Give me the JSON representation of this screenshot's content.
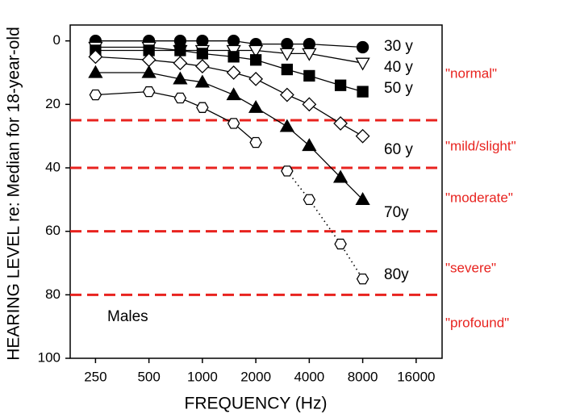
{
  "chart_data": {
    "type": "line",
    "x_label": "FREQUENCY (Hz)",
    "y_label": "HEARING LEVEL re: Median for 18-year-old",
    "annotation": "Males",
    "log_x": true,
    "y_inverted": true,
    "xlim": [
      180,
      22400
    ],
    "ylim": [
      -5,
      100
    ],
    "xticks": [
      250,
      500,
      1000,
      2000,
      4000,
      8000,
      16000
    ],
    "yticks": [
      0,
      20,
      40,
      60,
      80,
      100
    ],
    "x": [
      250,
      500,
      750,
      1000,
      1500,
      2000,
      3000,
      4000,
      6000,
      8000
    ],
    "series": [
      {
        "name": "30 y",
        "color": "#000000",
        "marker": "circle",
        "filled": true,
        "values": [
          0,
          0,
          0,
          0,
          0,
          1,
          1,
          1,
          null,
          2
        ]
      },
      {
        "name": "40 y",
        "color": "#000000",
        "marker": "triangle-down",
        "filled": false,
        "values": [
          2,
          2,
          3,
          3,
          3,
          3,
          4,
          4,
          null,
          7
        ]
      },
      {
        "name": "50 y",
        "color": "#000000",
        "marker": "square",
        "filled": true,
        "values": [
          3,
          3,
          3,
          4,
          5,
          6,
          9,
          11,
          14,
          16
        ]
      },
      {
        "name": "60 y",
        "color": "#000000",
        "marker": "diamond",
        "filled": false,
        "values": [
          5,
          6,
          7,
          8,
          10,
          12,
          17,
          20,
          26,
          30
        ]
      },
      {
        "name": "70y",
        "color": "#000000",
        "marker": "triangle-up",
        "filled": true,
        "values": [
          10,
          10,
          12,
          13,
          17,
          21,
          27,
          33,
          43,
          50
        ]
      },
      {
        "name": "80y",
        "color": "#000000",
        "marker": "hexagon",
        "filled": false,
        "values": [
          17,
          16,
          18,
          21,
          26,
          32,
          41,
          50,
          64,
          75
        ],
        "line_styles": [
          "solid",
          "solid",
          "solid",
          "solid",
          "solid",
          "none",
          "dotted",
          "dotted",
          "dotted"
        ]
      }
    ],
    "thresholds": [
      25,
      40,
      60,
      80
    ],
    "threshold_color": "#e8231f",
    "category_labels": [
      "\"normal\"",
      "\"mild/slight\"",
      "\"moderate\"",
      "\"severe\"",
      "\"profound\""
    ]
  }
}
